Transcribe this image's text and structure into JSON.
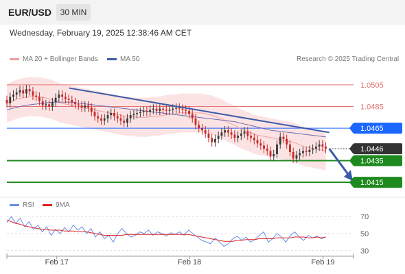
{
  "header": {
    "pair": "EUR/USD",
    "timeframe": "30 MIN"
  },
  "timestamp": "Wednesday, February 19, 2025 12:38:46 AM CET",
  "legend": {
    "ma20": "MA 20 + Bollinger Bands",
    "ma50": "MA 50",
    "credit": "Research © 2025 Trading Central",
    "rsi": "RSI",
    "rsi_ma": "9MA"
  },
  "colors": {
    "up": "#3a3a3a",
    "down": "#c62828",
    "bollinger": "#fbdcdc",
    "ma20": "#f0a0a0",
    "ma50": "#6a6ab0",
    "trendline": "#3b5ba8",
    "resistance": "#e57373",
    "pivot": "#1a66ff",
    "support": "#1e8a1e",
    "last": "#333333",
    "rsi": "#6a8ce6",
    "rsi_ma": "#e02020"
  },
  "chart_data": [
    {
      "type": "candlestick",
      "instrument": "EUR/USD",
      "timeframe": "30 MIN",
      "x_ticks": [
        "Feb 17",
        "Feb 18",
        "Feb 19"
      ],
      "ylim": [
        1.0405,
        1.0515
      ],
      "price_levels": [
        {
          "label": "1.0505",
          "value": 1.0505,
          "kind": "resistance"
        },
        {
          "label": "1.0485",
          "value": 1.0485,
          "kind": "resistance"
        },
        {
          "label": "1.0465",
          "value": 1.0465,
          "kind": "pivot"
        },
        {
          "label": "1.0446",
          "value": 1.0446,
          "kind": "last"
        },
        {
          "label": "1.0435",
          "value": 1.0435,
          "kind": "support"
        },
        {
          "label": "1.0415",
          "value": 1.0415,
          "kind": "support"
        }
      ],
      "trendline_points": [
        [
          0.18,
          1.0502
        ],
        [
          0.93,
          1.0461
        ]
      ],
      "ohlc_close": [
        1.0488,
        1.0494,
        1.0496,
        1.0498,
        1.05,
        1.0497,
        1.0501,
        1.0499,
        1.0495,
        1.0494,
        1.049,
        1.0486,
        1.0487,
        1.0485,
        1.0489,
        1.0493,
        1.0496,
        1.0494,
        1.0492,
        1.0491,
        1.0489,
        1.0487,
        1.0486,
        1.0484,
        1.0486,
        1.0484,
        1.048,
        1.0476,
        1.0474,
        1.0472,
        1.0474,
        1.0477,
        1.0479,
        1.0476,
        1.0474,
        1.0472,
        1.047,
        1.0474,
        1.0477,
        1.0478,
        1.0479,
        1.048,
        1.0481,
        1.048,
        1.0482,
        1.0483,
        1.0481,
        1.0483,
        1.0482,
        1.0481,
        1.0482,
        1.0483,
        1.0484,
        1.0483,
        1.0482,
        1.0481,
        1.0478,
        1.0474,
        1.0468,
        1.0465,
        1.0463,
        1.046,
        1.0456,
        1.0452,
        1.0455,
        1.0458,
        1.0461,
        1.0463,
        1.0461,
        1.0459,
        1.0456,
        1.0458,
        1.046,
        1.0462,
        1.0458,
        1.0456,
        1.0454,
        1.0451,
        1.0449,
        1.0446,
        1.0444,
        1.0439,
        1.0441,
        1.045,
        1.0457,
        1.0455,
        1.045,
        1.0443,
        1.0437,
        1.044,
        1.0442,
        1.0444,
        1.0443,
        1.0445,
        1.0446,
        1.0448,
        1.045,
        1.0448,
        1.0446
      ],
      "ma20_approx": [
        1.0488,
        1.049,
        1.0492,
        1.0493,
        1.0494,
        1.0494,
        1.0494,
        1.0493,
        1.0492,
        1.049,
        1.0488,
        1.0487,
        1.0486,
        1.0485,
        1.0484,
        1.0483,
        1.0482,
        1.0481,
        1.048,
        1.0479,
        1.0478,
        1.0477,
        1.0476,
        1.0476,
        1.0475,
        1.0475,
        1.0475,
        1.0476,
        1.0476,
        1.0477,
        1.0478,
        1.0478,
        1.0479,
        1.0479,
        1.0479,
        1.0479,
        1.0479,
        1.0478,
        1.0477,
        1.0475,
        1.0473,
        1.047,
        1.0468,
        1.0465,
        1.0463,
        1.0461,
        1.0459,
        1.0458,
        1.0457,
        1.0456,
        1.0455,
        1.0454,
        1.0453,
        1.0452,
        1.045,
        1.0448,
        1.0447,
        1.0446,
        1.0445,
        1.0444
      ],
      "ma50_approx": [
        1.0482,
        1.0484,
        1.0486,
        1.0487,
        1.0488,
        1.0489,
        1.0489,
        1.0489,
        1.0488,
        1.0487,
        1.0486,
        1.0485,
        1.0484,
        1.0483,
        1.0482,
        1.0481,
        1.048,
        1.0479,
        1.0478,
        1.0477,
        1.0476,
        1.0475,
        1.0474,
        1.0473,
        1.0472,
        1.0471,
        1.0469,
        1.0467,
        1.0465,
        1.0463,
        1.0462,
        1.0461,
        1.046,
        1.0459,
        1.0458,
        1.0457
      ],
      "forecast_target": 1.0415
    },
    {
      "type": "line",
      "name": "RSI",
      "ylim": [
        25,
        75
      ],
      "y_ticks": [
        70,
        50,
        30
      ],
      "series": [
        {
          "name": "RSI",
          "values": [
            63,
            70,
            62,
            68,
            58,
            64,
            55,
            60,
            52,
            58,
            48,
            55,
            50,
            57,
            52,
            60,
            54,
            58,
            50,
            56,
            46,
            52,
            44,
            48,
            40,
            50,
            56,
            50,
            46,
            48,
            52,
            50,
            54,
            48,
            52,
            50,
            47,
            51,
            49,
            52,
            48,
            54,
            50,
            46,
            42,
            40,
            38,
            45,
            40,
            35,
            38,
            44,
            47,
            42,
            46,
            40,
            43,
            48,
            52,
            40,
            44,
            50,
            46,
            40,
            48,
            52,
            46,
            42,
            48,
            45,
            47,
            44,
            46
          ]
        },
        {
          "name": "9MA",
          "values": [
            66,
            64,
            62,
            61,
            59,
            58,
            57,
            56,
            55,
            55,
            54,
            54,
            54,
            53,
            53,
            53,
            52,
            52,
            52,
            51,
            50,
            49,
            48,
            48,
            48,
            48,
            48,
            49,
            49,
            49,
            49,
            49,
            49,
            49,
            49,
            49,
            49,
            49,
            49,
            49,
            49,
            49,
            48,
            47,
            46,
            45,
            44,
            43,
            42,
            41,
            41,
            41,
            42,
            42,
            43,
            43,
            43,
            44,
            44,
            44,
            44,
            45,
            45,
            45,
            45,
            46,
            46,
            46,
            45,
            45,
            46,
            45,
            46
          ]
        }
      ]
    }
  ]
}
